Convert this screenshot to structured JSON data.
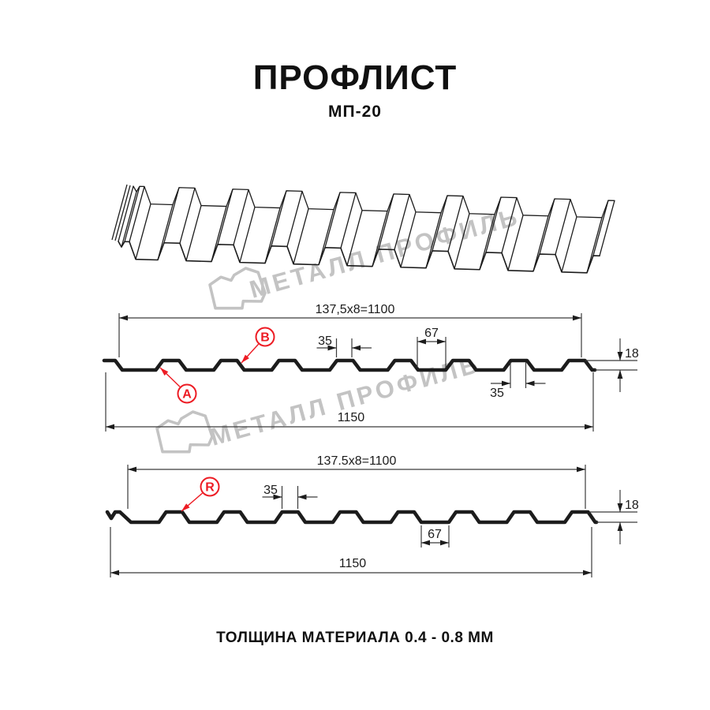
{
  "page": {
    "title": "ПРОФЛИСТ",
    "subtitle": "МП-20",
    "footer": "ТОЛЩИНА МАТЕРИАЛА 0.4 - 0.8 ММ"
  },
  "watermark": {
    "text": "МЕТАЛЛ ПРОФИЛЬ"
  },
  "colors": {
    "line": "#1c1c1c",
    "thin": "#3a3a3a",
    "red": "#ed1c24",
    "watermark": "#c3c3c3"
  },
  "sections": [
    {
      "id": "side-a-b",
      "top_dim": "137,5x8=1100",
      "rib_top_dim": "35",
      "flat_dim": "67",
      "rib_bottom_dim": "35",
      "height_dim": "18",
      "total_dim": "1150",
      "markers": [
        {
          "label": "B"
        },
        {
          "label": "A"
        }
      ]
    },
    {
      "id": "side-r",
      "top_dim": "137.5x8=1100",
      "rib_top_dim": "35",
      "flat_dim": "67",
      "height_dim": "18",
      "total_dim": "1150",
      "markers": [
        {
          "label": "R"
        }
      ]
    }
  ],
  "spec": {
    "pitch_mm": "137.5",
    "ribs_per_sheet": 8,
    "rib_top_mm": "35",
    "flat_mm": "67",
    "height_mm": "18",
    "useful_width_mm": "1100",
    "overall_width_mm": "1150"
  }
}
